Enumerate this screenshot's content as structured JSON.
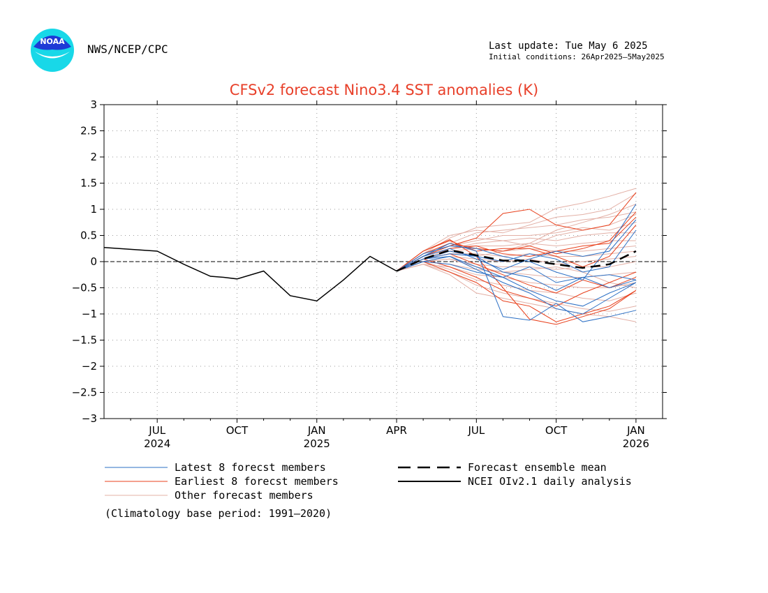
{
  "header": {
    "agency": "NWS/NCEP/CPC",
    "last_update": "Last update: Tue May 6 2025",
    "initial_conditions": "Initial conditions: 26Apr2025—5May2025",
    "logo_text": "NOAA"
  },
  "footer": {
    "climatology_note": "(Climatology base period: 1991—2020)"
  },
  "colors": {
    "latest": "#2b6fc4",
    "earliest": "#e8401c",
    "other": "#e3b0a6",
    "mean": "#000000",
    "analysis": "#000000",
    "title": "#e8402a",
    "logo_blue": "#1e3ad6",
    "logo_cyan": "#18d8e8"
  },
  "chart_data": {
    "type": "line",
    "title": "CFSv2 forecast Nino3.4 SST anomalies (K)",
    "xlabel": "",
    "ylabel": "",
    "ylim": [
      -3,
      3
    ],
    "y_ticks": [
      -3,
      -2.5,
      -2,
      -1.5,
      -1,
      -0.5,
      0,
      0.5,
      1,
      1.5,
      2,
      2.5,
      3
    ],
    "y_tick_labels": [
      "−3",
      "−2.5",
      "−2",
      "−1.5",
      "−1",
      "−0.5",
      "0",
      "0.5",
      "1",
      "1.5",
      "2",
      "2.5",
      "3"
    ],
    "xlim": [
      0,
      21
    ],
    "x_ticks": [
      {
        "x": 2,
        "label": "JUL",
        "year": "2024"
      },
      {
        "x": 5,
        "label": "OCT",
        "year": ""
      },
      {
        "x": 8,
        "label": "JAN",
        "year": "2025"
      },
      {
        "x": 11,
        "label": "APR",
        "year": ""
      },
      {
        "x": 14,
        "label": "JUL",
        "year": ""
      },
      {
        "x": 17,
        "label": "OCT",
        "year": ""
      },
      {
        "x": 20,
        "label": "JAN",
        "year": "2026"
      }
    ],
    "grid": true,
    "zero_line": true,
    "legend": {
      "latest": "Latest 8 forecst members",
      "earliest": "Earliest 8 forecst members",
      "other": "Other forecast members",
      "mean": "Forecast ensemble mean",
      "analysis": "NCEI OIv2.1 daily analysis"
    },
    "analysis": {
      "name": "NCEI OIv2.1 daily analysis",
      "x": [
        0,
        2,
        3,
        4,
        4.5,
        5,
        6,
        7,
        8,
        9,
        10,
        11
      ],
      "y": [
        0.27,
        0.2,
        -0.05,
        -0.28,
        -0.3,
        -0.33,
        -0.18,
        -0.65,
        -0.75,
        -0.35,
        0.1,
        -0.18
      ]
    },
    "ensemble_mean": {
      "name": "Forecast ensemble mean",
      "x": [
        11,
        12,
        13,
        14,
        15,
        16,
        17,
        18,
        19,
        20
      ],
      "y": [
        -0.18,
        0.05,
        0.22,
        0.12,
        0.02,
        0.02,
        -0.05,
        -0.12,
        -0.05,
        0.2
      ]
    },
    "members_x": [
      11,
      12,
      13,
      14,
      15,
      16,
      17,
      18,
      19,
      20
    ],
    "latest_members": [
      [
        -0.18,
        0.05,
        0.2,
        0.1,
        -0.2,
        -0.3,
        -0.55,
        -0.3,
        -0.25,
        -0.35
      ],
      [
        -0.18,
        0.1,
        0.35,
        0.2,
        -1.05,
        -1.12,
        -0.8,
        -1.15,
        -1.05,
        -0.93
      ],
      [
        -0.18,
        0.0,
        0.1,
        -0.1,
        -0.3,
        -0.55,
        -0.75,
        -0.85,
        -0.6,
        -0.4
      ],
      [
        -0.18,
        0.15,
        0.3,
        0.25,
        0.1,
        0.0,
        -0.2,
        -0.35,
        0.3,
        1.1
      ],
      [
        -0.18,
        0.05,
        0.15,
        0.1,
        0.0,
        0.15,
        0.05,
        -0.2,
        -0.1,
        0.6
      ],
      [
        -0.18,
        0.0,
        -0.05,
        -0.2,
        -0.3,
        -0.1,
        -0.4,
        -0.3,
        -0.5,
        -0.35
      ],
      [
        -0.18,
        0.1,
        0.25,
        0.05,
        -0.15,
        0.05,
        0.2,
        0.1,
        0.2,
        0.8
      ],
      [
        -0.18,
        0.05,
        0.1,
        -0.15,
        -0.4,
        -0.6,
        -0.9,
        -1.0,
        -0.7,
        -0.4
      ]
    ],
    "earliest_members": [
      [
        -0.18,
        0.1,
        0.3,
        0.45,
        0.92,
        1.0,
        0.7,
        0.6,
        0.7,
        1.32
      ],
      [
        -0.18,
        0.2,
        0.42,
        0.1,
        -0.5,
        -1.1,
        -1.2,
        -1.05,
        -0.9,
        -0.55
      ],
      [
        -0.18,
        0.15,
        0.35,
        0.25,
        0.2,
        0.3,
        0.15,
        0.25,
        0.4,
        0.95
      ],
      [
        -0.18,
        0.05,
        -0.1,
        -0.3,
        -0.55,
        -0.7,
        -0.85,
        -0.6,
        -0.4,
        -0.2
      ],
      [
        -0.18,
        0.1,
        0.25,
        0.3,
        0.15,
        0.1,
        0.2,
        0.3,
        0.35,
        0.85
      ],
      [
        -0.18,
        0.0,
        -0.2,
        -0.4,
        -0.75,
        -0.85,
        -1.15,
        -1.0,
        -0.85,
        -0.55
      ],
      [
        -0.18,
        0.2,
        0.4,
        0.2,
        0.25,
        0.25,
        0.1,
        -0.1,
        0.1,
        0.7
      ],
      [
        -0.18,
        0.05,
        0.15,
        -0.05,
        -0.25,
        -0.45,
        -0.6,
        -0.35,
        -0.5,
        -0.3
      ]
    ],
    "other_members": [
      [
        -0.18,
        0.15,
        0.45,
        0.65,
        0.7,
        0.75,
        1.02,
        1.12,
        1.25,
        1.4
      ],
      [
        -0.18,
        0.2,
        0.5,
        0.6,
        0.55,
        0.7,
        0.85,
        0.9,
        1.0,
        1.3
      ],
      [
        -0.18,
        0.1,
        0.35,
        0.55,
        0.6,
        0.65,
        0.7,
        0.8,
        0.85,
        0.95
      ],
      [
        -0.18,
        0.1,
        0.3,
        0.4,
        0.5,
        0.5,
        0.55,
        0.65,
        0.6,
        0.75
      ],
      [
        -0.18,
        0.05,
        0.25,
        0.35,
        0.4,
        0.45,
        0.4,
        0.5,
        0.55,
        0.55
      ],
      [
        -0.18,
        0.1,
        0.3,
        0.3,
        0.3,
        0.35,
        0.3,
        0.35,
        0.4,
        0.4
      ],
      [
        -0.18,
        0.05,
        0.2,
        0.25,
        0.2,
        0.25,
        0.2,
        0.2,
        0.25,
        0.3
      ],
      [
        -0.18,
        0.05,
        0.15,
        0.15,
        0.1,
        0.15,
        0.1,
        0.1,
        0.15,
        0.2
      ],
      [
        -0.18,
        0.0,
        0.1,
        0.05,
        0.0,
        0.05,
        -0.05,
        0.0,
        0.05,
        0.1
      ],
      [
        -0.18,
        0.0,
        0.05,
        -0.05,
        -0.1,
        -0.1,
        -0.15,
        -0.1,
        -0.1,
        0.0
      ],
      [
        -0.18,
        0.0,
        -0.05,
        -0.15,
        -0.2,
        -0.25,
        -0.3,
        -0.3,
        -0.25,
        -0.2
      ],
      [
        -0.18,
        -0.05,
        -0.1,
        -0.25,
        -0.3,
        -0.4,
        -0.45,
        -0.5,
        -0.5,
        -0.4
      ],
      [
        -0.18,
        0.0,
        -0.15,
        -0.35,
        -0.45,
        -0.55,
        -0.6,
        -0.7,
        -0.75,
        -0.6
      ],
      [
        -0.18,
        -0.05,
        -0.2,
        -0.45,
        -0.6,
        -0.7,
        -0.8,
        -0.9,
        -0.95,
        -0.85
      ],
      [
        -0.18,
        -0.05,
        -0.25,
        -0.6,
        -0.7,
        -0.8,
        -0.9,
        -1.0,
        -1.05,
        -1.15
      ],
      [
        -0.18,
        0.1,
        0.3,
        0.45,
        0.4,
        0.3,
        0.5,
        0.6,
        0.7,
        0.9
      ],
      [
        -0.18,
        0.05,
        0.2,
        0.1,
        0.2,
        0.35,
        0.6,
        0.75,
        0.9,
        1.1
      ],
      [
        -0.18,
        0.0,
        0.05,
        -0.1,
        -0.2,
        -0.15,
        -0.1,
        -0.2,
        -0.4,
        -0.5
      ]
    ]
  }
}
